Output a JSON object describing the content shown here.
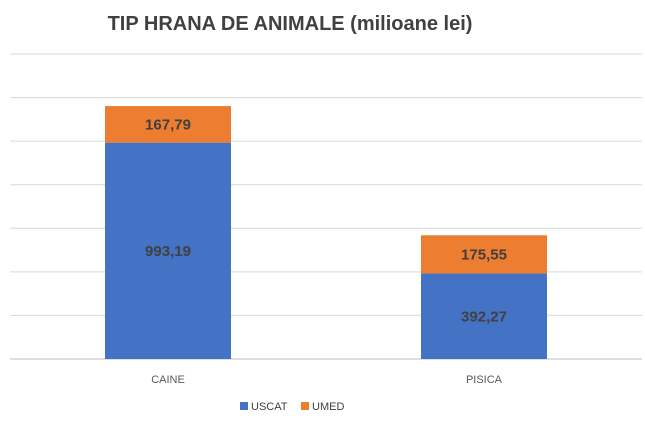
{
  "chart_data": {
    "type": "bar",
    "stacked": true,
    "title": "TIP HRANA DE ANIMALE (milioane lei)",
    "categories": [
      "CAINE",
      "PISICA"
    ],
    "series": [
      {
        "name": "USCAT",
        "values": [
          993.19,
          392.27
        ],
        "labels": [
          "993,19",
          "392,27"
        ],
        "color": "#4472c4"
      },
      {
        "name": "UMED",
        "values": [
          167.79,
          175.55
        ],
        "labels": [
          "167,79",
          "175,55"
        ],
        "color": "#ed7d31"
      }
    ],
    "xlabel": "",
    "ylabel": "",
    "ylim": [
      0,
      1400
    ],
    "grid": true,
    "legend": "bottom"
  }
}
